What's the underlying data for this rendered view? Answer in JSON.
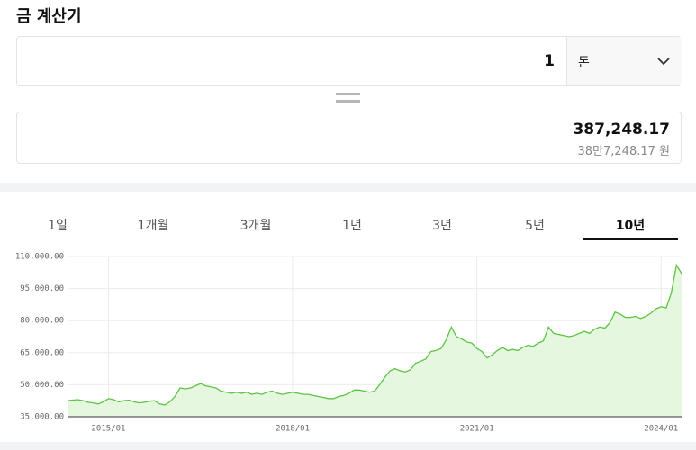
{
  "header": {
    "title": "금 계산기"
  },
  "converter": {
    "input_value": "1",
    "unit": "돈",
    "result": "387,248.17",
    "result_korean": "38만7,248.17 원"
  },
  "tabs": {
    "items": [
      "1일",
      "1개월",
      "3개월",
      "1년",
      "3년",
      "5년",
      "10년"
    ],
    "selected": 6
  },
  "chart_data": {
    "type": "line",
    "x": [
      "2014/05",
      "2014/06",
      "2014/07",
      "2014/08",
      "2014/09",
      "2014/10",
      "2014/11",
      "2014/12",
      "2015/01",
      "2015/02",
      "2015/03",
      "2015/04",
      "2015/05",
      "2015/06",
      "2015/07",
      "2015/08",
      "2015/09",
      "2015/10",
      "2015/11",
      "2015/12",
      "2016/01",
      "2016/02",
      "2016/03",
      "2016/04",
      "2016/05",
      "2016/06",
      "2016/07",
      "2016/08",
      "2016/09",
      "2016/10",
      "2016/11",
      "2016/12",
      "2017/01",
      "2017/02",
      "2017/03",
      "2017/04",
      "2017/05",
      "2017/06",
      "2017/07",
      "2017/08",
      "2017/09",
      "2017/10",
      "2017/11",
      "2017/12",
      "2018/01",
      "2018/02",
      "2018/03",
      "2018/04",
      "2018/05",
      "2018/06",
      "2018/07",
      "2018/08",
      "2018/09",
      "2018/10",
      "2018/11",
      "2018/12",
      "2019/01",
      "2019/02",
      "2019/03",
      "2019/04",
      "2019/05",
      "2019/06",
      "2019/07",
      "2019/08",
      "2019/09",
      "2019/10",
      "2019/11",
      "2019/12",
      "2020/01",
      "2020/02",
      "2020/03",
      "2020/04",
      "2020/05",
      "2020/06",
      "2020/07",
      "2020/08",
      "2020/09",
      "2020/10",
      "2020/11",
      "2020/12",
      "2021/01",
      "2021/02",
      "2021/03",
      "2021/04",
      "2021/05",
      "2021/06",
      "2021/07",
      "2021/08",
      "2021/09",
      "2021/10",
      "2021/11",
      "2021/12",
      "2022/01",
      "2022/02",
      "2022/03",
      "2022/04",
      "2022/05",
      "2022/06",
      "2022/07",
      "2022/08",
      "2022/09",
      "2022/10",
      "2022/11",
      "2022/12",
      "2023/01",
      "2023/02",
      "2023/03",
      "2023/04",
      "2023/05",
      "2023/06",
      "2023/07",
      "2023/08",
      "2023/09",
      "2023/10",
      "2023/11",
      "2023/12",
      "2024/01",
      "2024/02",
      "2024/03",
      "2024/04",
      "2024/05"
    ],
    "values": [
      42500,
      42800,
      43000,
      42600,
      41800,
      41500,
      41000,
      42000,
      43500,
      43000,
      42000,
      42500,
      42800,
      42000,
      41500,
      41800,
      42300,
      42500,
      41000,
      40500,
      42000,
      44500,
      48500,
      48000,
      48500,
      49500,
      50500,
      49500,
      49000,
      48500,
      47000,
      46500,
      46000,
      46500,
      46000,
      46500,
      45500,
      46000,
      45500,
      46500,
      47000,
      46000,
      45500,
      46000,
      46500,
      46000,
      45500,
      45500,
      45000,
      44500,
      44000,
      43500,
      43500,
      44500,
      45000,
      46000,
      47500,
      47500,
      47000,
      46500,
      47000,
      50000,
      53500,
      56500,
      57500,
      56500,
      56000,
      57000,
      60000,
      61000,
      62000,
      65500,
      66000,
      67000,
      71000,
      77000,
      72500,
      71500,
      70000,
      69500,
      67000,
      65500,
      62500,
      64000,
      66000,
      67500,
      66000,
      66500,
      66000,
      67500,
      68500,
      68000,
      69500,
      70500,
      77000,
      74000,
      73500,
      73000,
      72500,
      73000,
      74000,
      75000,
      74000,
      76000,
      77000,
      76500,
      79000,
      84000,
      83000,
      81500,
      81500,
      82000,
      81000,
      82000,
      83500,
      85500,
      86500,
      86000,
      93000,
      106000,
      102000
    ],
    "color": "#5cc443",
    "area": true,
    "area_color": "#e5f7df",
    "ylim": [
      35000,
      110000
    ],
    "yticks": [
      {
        "value": 35000,
        "label": "35,000.00"
      },
      {
        "value": 50000,
        "label": "50,000.00"
      },
      {
        "value": 65000,
        "label": "65,000.00"
      },
      {
        "value": 80000,
        "label": "80,000.00"
      },
      {
        "value": 95000,
        "label": "95,000.00"
      },
      {
        "value": 110000,
        "label": "110,000.00"
      }
    ],
    "xticks": [
      "2015/01",
      "2018/01",
      "2021/01",
      "2024/01"
    ],
    "grid": true
  }
}
